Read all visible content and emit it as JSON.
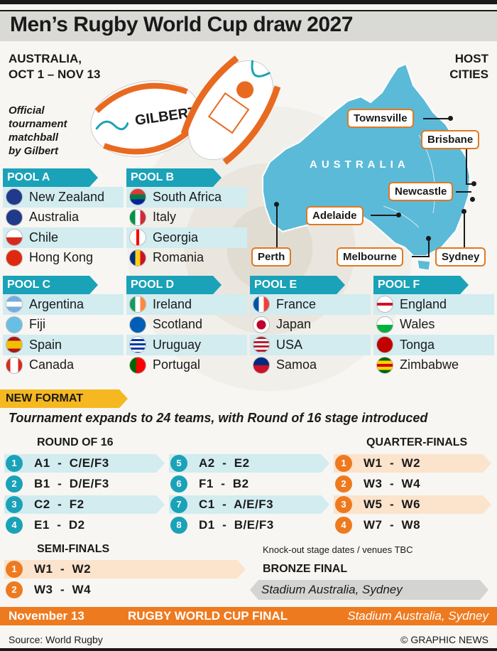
{
  "header": {
    "title": "Men’s Rugby World Cup draw 2027"
  },
  "event": {
    "country": "AUSTRALIA,",
    "dates": "OCT 1 – NOV 13"
  },
  "host_label": {
    "line1": "HOST",
    "line2": "CITIES"
  },
  "ball_caption": {
    "line1": "Official",
    "line2": "tournament",
    "line3": "matchball",
    "line4": "by Gilbert"
  },
  "map": {
    "country_label": "AUSTRALIA",
    "land_color": "#5bbad8",
    "cities": [
      "Townsville",
      "Brisbane",
      "Newcastle",
      "Adelaide",
      "Perth",
      "Melbourne",
      "Sydney"
    ]
  },
  "pools": [
    {
      "name": "POOL A",
      "teams": [
        "New Zealand",
        "Australia",
        "Chile",
        "Hong Kong"
      ]
    },
    {
      "name": "POOL B",
      "teams": [
        "South Africa",
        "Italy",
        "Georgia",
        "Romania"
      ]
    },
    {
      "name": "POOL C",
      "teams": [
        "Argentina",
        "Fiji",
        "Spain",
        "Canada"
      ]
    },
    {
      "name": "POOL D",
      "teams": [
        "Ireland",
        "Scotland",
        "Uruguay",
        "Portugal"
      ]
    },
    {
      "name": "POOL E",
      "teams": [
        "France",
        "Japan",
        "USA",
        "Samoa"
      ]
    },
    {
      "name": "POOL F",
      "teams": [
        "England",
        "Wales",
        "Tonga",
        "Zimbabwe"
      ]
    }
  ],
  "new_format": {
    "tab": "NEW FORMAT",
    "subtitle": "Tournament expands to 24 teams, with Round of 16 stage introduced"
  },
  "round_of_16": {
    "heading": "ROUND OF 16",
    "matches": [
      {
        "num": "1",
        "text": "A1  -  C/E/F3"
      },
      {
        "num": "2",
        "text": "B1  -  D/E/F3"
      },
      {
        "num": "3",
        "text": "C2  -  F2"
      },
      {
        "num": "4",
        "text": "E1  -  D2"
      },
      {
        "num": "5",
        "text": "A2  -  E2"
      },
      {
        "num": "6",
        "text": "F1  -  B2"
      },
      {
        "num": "7",
        "text": "C1  -  A/E/F3"
      },
      {
        "num": "8",
        "text": "D1  -  B/E/F3"
      }
    ]
  },
  "quarter_finals": {
    "heading": "QUARTER-FINALS",
    "matches": [
      {
        "num": "1",
        "text": "W1  -  W2"
      },
      {
        "num": "2",
        "text": "W3  -  W4"
      },
      {
        "num": "3",
        "text": "W5  -  W6"
      },
      {
        "num": "4",
        "text": "W7  -  W8"
      }
    ]
  },
  "semi_finals": {
    "heading": "SEMI-FINALS",
    "matches": [
      {
        "num": "1",
        "text": "W1  -  W2"
      },
      {
        "num": "2",
        "text": "W3  -  W4"
      }
    ]
  },
  "knockout_note": "Knock-out stage dates / venues TBC",
  "bronze_final": {
    "heading": "BRONZE FINAL",
    "venue": "Stadium Australia, Sydney"
  },
  "final": {
    "date": "November 13",
    "name": "RUGBY WORLD CUP FINAL",
    "venue": "Stadium Australia, Sydney"
  },
  "footer": {
    "source": "Source: World Rugby",
    "credit": "© GRAPHIC NEWS"
  },
  "colors": {
    "teal": "#1aa2b8",
    "teal_light": "#d2ecf0",
    "orange": "#ee7a20",
    "orange_light": "#fbe3cc",
    "yellow": "#f5b820"
  }
}
